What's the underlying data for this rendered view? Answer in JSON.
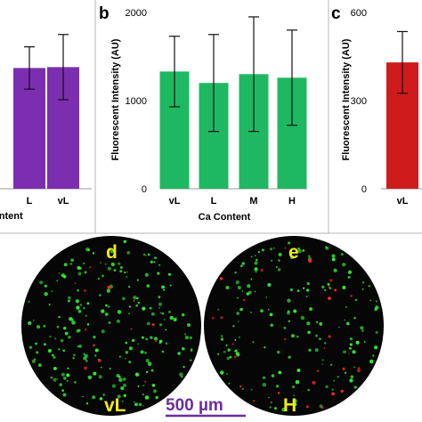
{
  "colors": {
    "purple": "#7b2fb0",
    "green": "#1fb862",
    "red": "#cf1b1b",
    "yellow_label": "#f2ea12",
    "scale_bar": "#6c2ea0",
    "cell_green": "#35f035",
    "cell_red": "#ff2a2a"
  },
  "panels": {
    "b": {
      "letter": "b"
    },
    "c": {
      "letter": "c"
    },
    "d": {
      "letter": "d",
      "condition": "vL"
    },
    "e": {
      "letter": "e",
      "condition": "H"
    }
  },
  "scale_bar": {
    "label": "500 µm"
  },
  "chart_data": [
    {
      "type": "bar",
      "panel": "a",
      "categories": [
        "L",
        "vL"
      ],
      "values": [
        1370,
        1380
      ],
      "errors": [
        240,
        370
      ],
      "xlabel": "ontent",
      "ylabel": "",
      "color": "#7b2fb0"
    },
    {
      "type": "bar",
      "panel": "b",
      "categories": [
        "vL",
        "L",
        "M",
        "H"
      ],
      "values": [
        1330,
        1200,
        1300,
        1260
      ],
      "errors": [
        400,
        550,
        650,
        540
      ],
      "xlabel": "Ca Content",
      "ylabel": "Fluorescent Intensity (AU)",
      "ylim": [
        0,
        2000
      ],
      "yticks": [
        "0",
        "1000",
        "2000"
      ],
      "color": "#1fb862"
    },
    {
      "type": "bar",
      "panel": "c",
      "categories": [
        "vL"
      ],
      "values": [
        430
      ],
      "errors": [
        105
      ],
      "xlabel": "",
      "ylabel": "Fluorescent Intensity (AU)",
      "ylim": [
        0,
        600
      ],
      "yticks": [
        "0",
        "300",
        "600"
      ],
      "color": "#cf1b1b"
    }
  ]
}
